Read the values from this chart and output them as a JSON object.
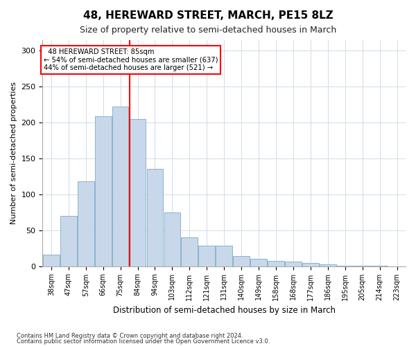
{
  "title": "48, HEREWARD STREET, MARCH, PE15 8LZ",
  "subtitle": "Size of property relative to semi-detached houses in March",
  "xlabel": "Distribution of semi-detached houses by size in March",
  "ylabel": "Number of semi-detached properties",
  "bar_color": "#c8d8ea",
  "bar_edge_color": "#7aaac8",
  "vline_x": 5,
  "vline_color": "red",
  "annotation_title": "48 HEREWARD STREET: 85sqm",
  "annotation_line1": "← 54% of semi-detached houses are smaller (637)",
  "annotation_line2": "44% of semi-detached houses are larger (521) →",
  "categories": [
    "38sqm",
    "47sqm",
    "57sqm",
    "66sqm",
    "75sqm",
    "84sqm",
    "94sqm",
    "103sqm",
    "112sqm",
    "121sqm",
    "131sqm",
    "140sqm",
    "149sqm",
    "158sqm",
    "168sqm",
    "177sqm",
    "186sqm",
    "195sqm",
    "205sqm",
    "214sqm",
    "223sqm"
  ],
  "bar_heights": [
    16,
    70,
    118,
    209,
    222,
    205,
    135,
    75,
    40,
    28,
    28,
    14,
    10,
    7,
    6,
    4,
    2,
    1,
    1,
    1,
    0
  ],
  "ylim": [
    0,
    315
  ],
  "yticks": [
    0,
    50,
    100,
    150,
    200,
    250,
    300
  ],
  "footnote1": "Contains HM Land Registry data © Crown copyright and database right 2024.",
  "footnote2": "Contains public sector information licensed under the Open Government Licence v3.0.",
  "background_color": "#ffffff",
  "grid_color": "#d0dce8"
}
